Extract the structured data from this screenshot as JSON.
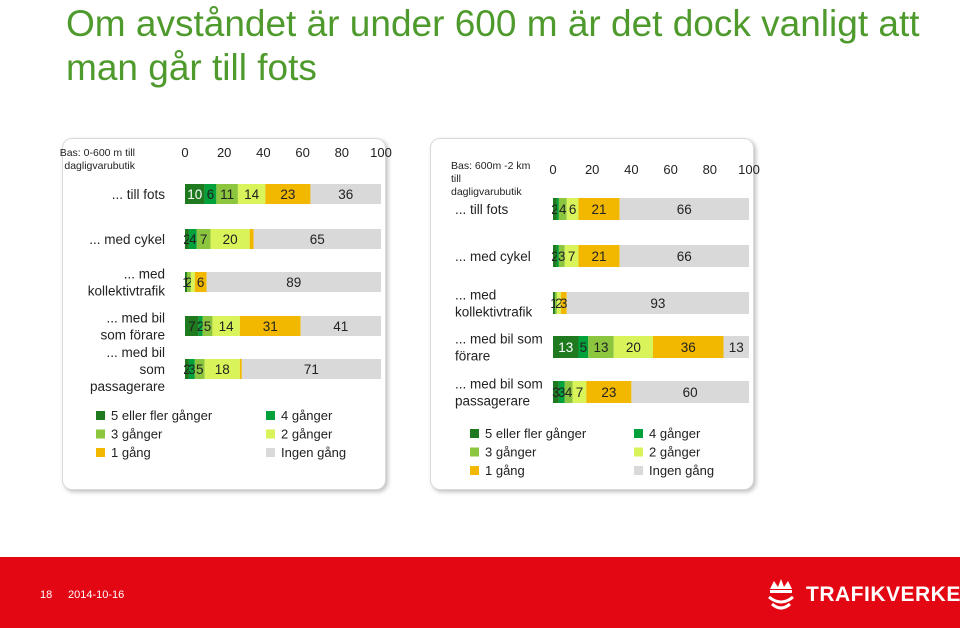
{
  "slide": {
    "title": "Om avståndet är under 600 m är det dock vanligt att man går till fots"
  },
  "footer": {
    "page_number": "18",
    "date": "2014-10-16",
    "brand": "TRAFIKVERKET"
  },
  "colors": {
    "series": [
      "#1f7a1f",
      "#00a03a",
      "#8cc63f",
      "#d9f35a",
      "#f2b800",
      "#d9d9d9"
    ],
    "title": "#4e9a2c",
    "footer_bg": "#e30613"
  },
  "chart_data": [
    {
      "type": "bar",
      "orientation": "horizontal",
      "stacked": true,
      "title": "Bas: 0-600 m till dagligvarubutik",
      "xlim": [
        0,
        100
      ],
      "xticks": [
        "0",
        "20",
        "40",
        "60",
        "80",
        "100"
      ],
      "legend_placement": "bottom",
      "categories": [
        "... till fots",
        "... med cykel",
        "... med kollektivtrafik",
        "... med bil som förare",
        "... med bil som passagerare"
      ],
      "series": [
        {
          "name": "5 eller fler gånger",
          "values": [
            10,
            2,
            1,
            7,
            2
          ]
        },
        {
          "name": "4 gånger",
          "values": [
            6,
            4,
            0,
            2,
            3
          ]
        },
        {
          "name": "3 gånger",
          "values": [
            11,
            7,
            2,
            5,
            5
          ]
        },
        {
          "name": "2 gånger",
          "values": [
            14,
            20,
            2,
            14,
            18
          ]
        },
        {
          "name": "1 gång",
          "values": [
            23,
            2,
            6,
            31,
            1
          ]
        },
        {
          "name": "Ingen gång",
          "values": [
            36,
            65,
            89,
            41,
            71
          ]
        }
      ],
      "data_labels": [
        [
          "10",
          "6",
          "11",
          "14",
          "23",
          "36"
        ],
        [
          "2",
          "4",
          "7",
          "20",
          "",
          "65"
        ],
        [
          "1",
          "",
          "2",
          "",
          "6",
          "89"
        ],
        [
          "7",
          "2",
          "5",
          "14",
          "31",
          "41"
        ],
        [
          "2",
          "3",
          "5",
          "18",
          "",
          "71"
        ]
      ]
    },
    {
      "type": "bar",
      "orientation": "horizontal",
      "stacked": true,
      "title": "Bas: 600m -2 km till dagligvarubutik",
      "xlim": [
        0,
        100
      ],
      "xticks": [
        "0",
        "20",
        "40",
        "60",
        "80",
        "100"
      ],
      "legend_placement": "bottom",
      "categories": [
        "... till fots",
        "... med cykel",
        "... med kollektivtrafik",
        "... med bil som förare",
        "... med bil som passagerare"
      ],
      "series": [
        {
          "name": "5 eller fler gånger",
          "values": [
            2,
            2,
            1,
            13,
            3
          ]
        },
        {
          "name": "4 gånger",
          "values": [
            1,
            1,
            0,
            5,
            3
          ]
        },
        {
          "name": "3 gånger",
          "values": [
            4,
            3,
            1,
            13,
            4
          ]
        },
        {
          "name": "2 gånger",
          "values": [
            6,
            7,
            2,
            20,
            7
          ]
        },
        {
          "name": "1 gång",
          "values": [
            21,
            21,
            3,
            36,
            23
          ]
        },
        {
          "name": "Ingen gång",
          "values": [
            66,
            66,
            93,
            13,
            60
          ]
        }
      ],
      "data_labels": [
        [
          "2",
          "",
          "4",
          "6",
          "21",
          "66"
        ],
        [
          "2",
          "",
          "3",
          "7",
          "21",
          "66"
        ],
        [
          "1",
          "",
          "",
          "2",
          "3",
          "93"
        ],
        [
          "13",
          "5",
          "13",
          "20",
          "36",
          "13"
        ],
        [
          "3",
          "3",
          "4",
          "7",
          "23",
          "60"
        ]
      ]
    }
  ]
}
